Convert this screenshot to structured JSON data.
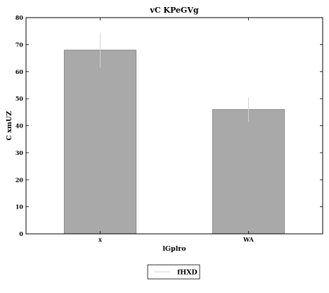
{
  "chart_data": {
    "type": "bar",
    "title": "vC KPeGVg",
    "xlabel": "lGplro",
    "ylabel": "C xmUZ",
    "categories": [
      "x",
      "WA"
    ],
    "series": [
      {
        "name": "fHXD",
        "values": [
          68,
          46
        ],
        "error_low": [
          61.5,
          41.5
        ],
        "error_high": [
          74.5,
          50.5
        ],
        "color": "#a9a9a9",
        "edge_color": "#7f7f7f",
        "error_color": "#d3d3d3"
      }
    ],
    "ylim": [
      0,
      80
    ],
    "yticks": [
      0,
      10,
      20,
      30,
      40,
      50,
      60,
      70,
      80
    ],
    "grid": false,
    "legend_position": "bottom-center"
  }
}
